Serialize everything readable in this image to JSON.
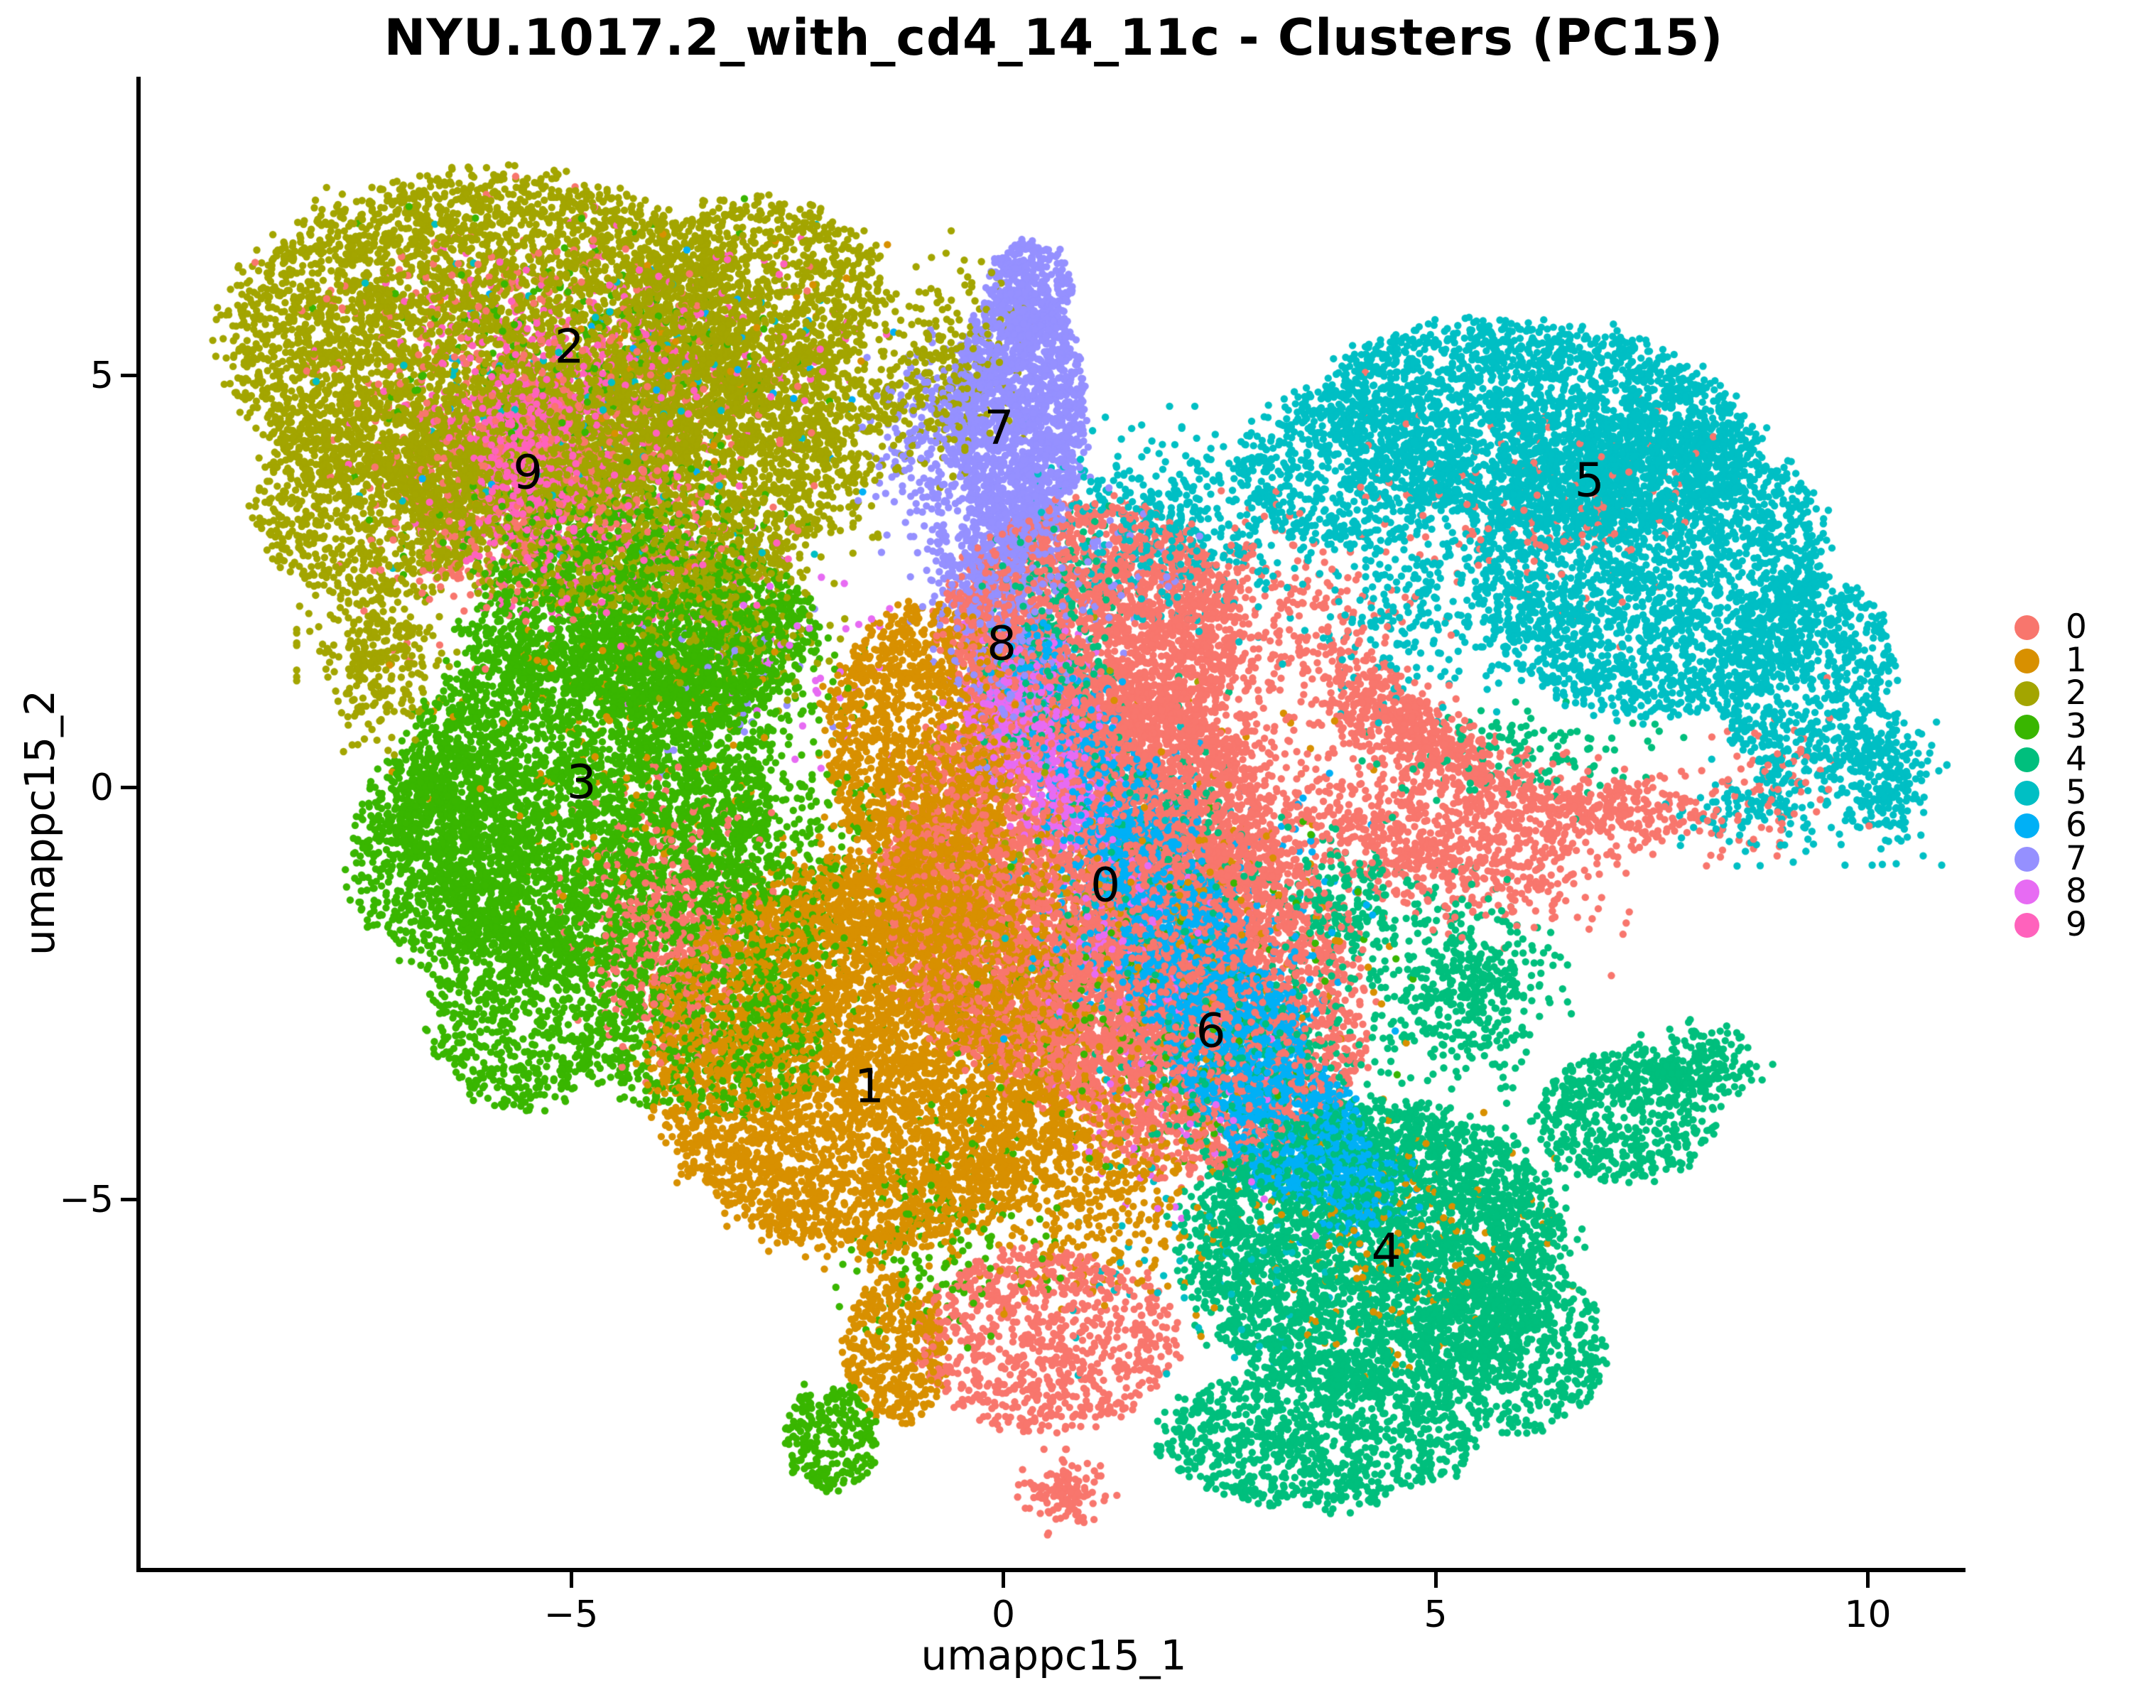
{
  "title": "NYU.1017.2_with_cd4_14_11c - Clusters (PC15)",
  "axes": {
    "x_label": "umappc15_1",
    "y_label": "umappc15_2",
    "x_ticks": [
      -5,
      0,
      5,
      10
    ],
    "x_tick_labels": [
      "−5",
      "0",
      "5",
      "10"
    ],
    "y_ticks": [
      -5,
      0,
      5
    ],
    "y_tick_labels": [
      "−5",
      "0",
      "5"
    ],
    "x_range": [
      -9.98,
      11.13
    ],
    "y_range": [
      -9.47,
      8.63
    ]
  },
  "legend": {
    "position": "right",
    "entries": [
      {
        "label": "0",
        "color": "#F8766D"
      },
      {
        "label": "1",
        "color": "#D89000"
      },
      {
        "label": "2",
        "color": "#A3A500"
      },
      {
        "label": "3",
        "color": "#39B600"
      },
      {
        "label": "4",
        "color": "#00BF7D"
      },
      {
        "label": "5",
        "color": "#00BFC4"
      },
      {
        "label": "6",
        "color": "#00B0F6"
      },
      {
        "label": "7",
        "color": "#9590FF"
      },
      {
        "label": "8",
        "color": "#E76BF3"
      },
      {
        "label": "9",
        "color": "#FF62BC"
      }
    ]
  },
  "chart_data": {
    "type": "scatter",
    "title": "NYU.1017.2_with_cd4_14_11c - Clusters (PC15)",
    "xlabel": "umappc15_1",
    "ylabel": "umappc15_2",
    "xlim": [
      -9.98,
      11.13
    ],
    "ylim": [
      -9.47,
      8.63
    ],
    "grid": false,
    "legend_position": "right",
    "point_radius_px": 5.2,
    "series": [
      {
        "name": "0",
        "color": "#F8766D",
        "label": "0",
        "label_pos": [
          1.18,
          -1.18
        ],
        "blobs": [
          [
            0.9,
            -1.2,
            2.3,
            2.5,
            4200,
            0,
            "u"
          ],
          [
            2.3,
            -2.6,
            1.9,
            2.1,
            2600,
            0,
            "u"
          ],
          [
            1.05,
            1.95,
            1.7,
            1.5,
            2300,
            0,
            "u"
          ],
          [
            2.1,
            0.3,
            1.4,
            1.5,
            800,
            0,
            "g"
          ],
          [
            4.9,
            -0.7,
            1.9,
            0.75,
            700,
            -15,
            "g"
          ],
          [
            6.8,
            -0.25,
            1.7,
            0.5,
            420,
            -5,
            "g"
          ],
          [
            4.4,
            0.9,
            1.1,
            0.5,
            400,
            -38,
            "g"
          ],
          [
            5.3,
            0.35,
            1.0,
            0.45,
            250,
            -38,
            "g"
          ],
          [
            0.5,
            -6.7,
            1.5,
            1.1,
            900,
            0,
            "u"
          ],
          [
            0.75,
            -8.55,
            0.45,
            0.4,
            130,
            0,
            "g"
          ],
          [
            -4.9,
            3.9,
            2.3,
            1.5,
            500,
            0,
            "g"
          ],
          [
            -5.6,
            5.6,
            2.6,
            1.4,
            220,
            0,
            "g"
          ],
          [
            -3.9,
            -1.7,
            0.95,
            1.5,
            650,
            0,
            "g"
          ],
          [
            3.3,
            2.1,
            1.5,
            1.3,
            250,
            0,
            "g"
          ],
          [
            6.3,
            3.4,
            2.0,
            1.3,
            160,
            0,
            "g"
          ],
          [
            9.0,
            0.3,
            0.8,
            0.8,
            60,
            0,
            "g"
          ],
          [
            -6.1,
            3.0,
            1.2,
            1.2,
            150,
            0,
            "g"
          ]
        ]
      },
      {
        "name": "1",
        "color": "#D89000",
        "label": "1",
        "label_pos": [
          -1.55,
          -3.62
        ],
        "blobs": [
          [
            -1.6,
            -3.3,
            2.45,
            2.35,
            5200,
            0,
            "u"
          ],
          [
            -0.9,
            0.6,
            1.15,
            1.6,
            1500,
            0,
            "u"
          ],
          [
            -0.6,
            -1.4,
            1.5,
            1.3,
            1150,
            0,
            "g"
          ],
          [
            -1.25,
            -6.8,
            0.6,
            0.9,
            420,
            0,
            "u"
          ],
          [
            0.9,
            -4.6,
            1.4,
            1.5,
            600,
            0,
            "g"
          ],
          [
            1.8,
            -1.8,
            2.2,
            2.2,
            300,
            0,
            "g"
          ],
          [
            4.6,
            -5.6,
            1.9,
            1.4,
            170,
            0,
            "g"
          ],
          [
            -4.5,
            0.3,
            2.0,
            2.0,
            150,
            0,
            "g"
          ],
          [
            -4.0,
            5.0,
            2.5,
            1.5,
            60,
            0,
            "g"
          ]
        ]
      },
      {
        "name": "2",
        "color": "#A3A500",
        "label": "2",
        "label_pos": [
          -5.02,
          5.35
        ],
        "blobs": [
          [
            -5.9,
            5.4,
            3.05,
            2.05,
            4600,
            0,
            "u"
          ],
          [
            -4.5,
            3.7,
            2.5,
            1.5,
            2300,
            0,
            "u"
          ],
          [
            -7.3,
            3.5,
            1.35,
            1.25,
            900,
            0,
            "u"
          ],
          [
            -2.9,
            6.0,
            1.5,
            1.15,
            1000,
            0,
            "u"
          ],
          [
            -2.2,
            4.6,
            1.35,
            1.2,
            700,
            0,
            "g"
          ],
          [
            -7.2,
            1.6,
            0.75,
            1.0,
            300,
            0,
            "g"
          ],
          [
            -3.3,
            2.2,
            1.2,
            1.0,
            350,
            0,
            "g"
          ],
          [
            -0.6,
            5.2,
            0.8,
            1.2,
            220,
            0,
            "g"
          ],
          [
            0.3,
            -0.5,
            1.5,
            2.0,
            70,
            0,
            "g"
          ]
        ]
      },
      {
        "name": "3",
        "color": "#39B600",
        "label": "3",
        "label_pos": [
          -4.88,
          0.07
        ],
        "blobs": [
          [
            -4.9,
            -0.2,
            2.15,
            2.1,
            3800,
            0,
            "u"
          ],
          [
            -4.2,
            2.0,
            2.0,
            1.05,
            1300,
            0,
            "u"
          ],
          [
            -6.5,
            -0.8,
            1.05,
            1.35,
            800,
            0,
            "u"
          ],
          [
            -5.6,
            -2.7,
            1.05,
            1.2,
            700,
            0,
            "u"
          ],
          [
            -3.4,
            -3.0,
            1.4,
            1.0,
            700,
            0,
            "u"
          ],
          [
            -2.6,
            -1.2,
            1.0,
            1.8,
            500,
            0,
            "g"
          ],
          [
            -3.3,
            1.4,
            1.3,
            1.0,
            600,
            0,
            "g"
          ],
          [
            -4.6,
            3.2,
            1.8,
            0.8,
            400,
            0,
            "g"
          ],
          [
            -2.0,
            -7.9,
            0.55,
            0.65,
            260,
            0,
            "u"
          ],
          [
            -0.7,
            -5.6,
            1.2,
            1.2,
            150,
            0,
            "g"
          ],
          [
            1.5,
            -2.5,
            2.5,
            2.0,
            200,
            0,
            "g"
          ],
          [
            -5.0,
            5.2,
            2.3,
            1.5,
            200,
            0,
            "g"
          ]
        ]
      },
      {
        "name": "4",
        "color": "#00BF7D",
        "label": "4",
        "label_pos": [
          4.43,
          -5.62
        ],
        "blobs": [
          [
            4.3,
            -5.6,
            2.2,
            1.75,
            3600,
            0,
            "u"
          ],
          [
            3.6,
            -7.9,
            1.8,
            0.85,
            1000,
            0,
            "u"
          ],
          [
            5.9,
            -6.8,
            1.1,
            1.0,
            600,
            0,
            "u"
          ],
          [
            7.2,
            -4.0,
            1.05,
            0.8,
            550,
            0,
            "u"
          ],
          [
            8.0,
            -3.4,
            0.7,
            0.45,
            220,
            0,
            "g"
          ],
          [
            5.4,
            -2.4,
            0.9,
            1.1,
            450,
            0,
            "g"
          ],
          [
            2.9,
            -3.3,
            1.5,
            1.5,
            450,
            0,
            "g"
          ],
          [
            1.7,
            -0.6,
            1.0,
            1.5,
            250,
            0,
            "g"
          ],
          [
            0.6,
            2.4,
            0.8,
            1.0,
            150,
            0,
            "g"
          ],
          [
            0.5,
            1.2,
            0.7,
            0.8,
            200,
            0,
            "g"
          ],
          [
            6.1,
            0.4,
            1.5,
            0.6,
            130,
            0,
            "g"
          ],
          [
            4.0,
            -1.4,
            0.8,
            0.8,
            200,
            0,
            "g"
          ]
        ]
      },
      {
        "name": "5",
        "color": "#00BFC4",
        "label": "5",
        "label_pos": [
          6.78,
          3.73
        ],
        "blobs": [
          [
            6.2,
            4.4,
            2.5,
            1.25,
            2600,
            -8,
            "u"
          ],
          [
            7.5,
            2.7,
            2.0,
            1.8,
            2600,
            0,
            "u"
          ],
          [
            9.3,
            1.3,
            1.05,
            1.3,
            800,
            0,
            "u"
          ],
          [
            10.2,
            0.1,
            0.55,
            0.8,
            250,
            0,
            "g"
          ],
          [
            4.0,
            3.9,
            1.3,
            1.0,
            700,
            0,
            "u"
          ],
          [
            2.0,
            3.2,
            1.35,
            1.1,
            450,
            0,
            "g"
          ],
          [
            4.9,
            2.2,
            1.5,
            1.1,
            300,
            0,
            "g"
          ],
          [
            8.7,
            -0.3,
            0.8,
            0.5,
            120,
            0,
            "g"
          ],
          [
            -4.7,
            4.5,
            2.5,
            1.8,
            120,
            0,
            "g"
          ],
          [
            1.2,
            -1.5,
            1.5,
            2.0,
            100,
            0,
            "g"
          ],
          [
            2.6,
            -6.0,
            2.0,
            1.5,
            60,
            0,
            "g"
          ]
        ]
      },
      {
        "name": "6",
        "color": "#00B0F6",
        "label": "6",
        "label_pos": [
          2.4,
          -2.95
        ],
        "blobs": [
          [
            0.85,
            0.5,
            0.5,
            0.8,
            350,
            0,
            "g"
          ],
          [
            1.45,
            -0.75,
            0.6,
            0.9,
            650,
            0,
            "g"
          ],
          [
            2.05,
            -2.0,
            0.7,
            0.95,
            900,
            0,
            "u"
          ],
          [
            2.7,
            -3.1,
            0.8,
            0.95,
            1000,
            0,
            "u"
          ],
          [
            3.4,
            -4.2,
            0.8,
            0.8,
            700,
            0,
            "u"
          ],
          [
            4.1,
            -4.9,
            0.55,
            0.5,
            250,
            0,
            "g"
          ],
          [
            2.2,
            -1.8,
            1.8,
            1.8,
            350,
            0,
            "g"
          ],
          [
            0.3,
            1.6,
            0.4,
            0.5,
            120,
            0,
            "g"
          ],
          [
            -4.0,
            4.8,
            2.8,
            1.8,
            40,
            0,
            "g"
          ]
        ]
      },
      {
        "name": "7",
        "color": "#9590FF",
        "label": "7",
        "label_pos": [
          -0.05,
          4.37
        ],
        "blobs": [
          [
            0.15,
            4.5,
            0.8,
            1.45,
            1700,
            0,
            "u"
          ],
          [
            0.3,
            6.0,
            0.5,
            0.65,
            400,
            0,
            "u"
          ],
          [
            -0.1,
            2.7,
            0.75,
            0.9,
            550,
            0,
            "g"
          ],
          [
            0.1,
            1.2,
            0.7,
            0.9,
            250,
            0,
            "g"
          ],
          [
            -0.9,
            4.2,
            0.6,
            1.2,
            200,
            0,
            "g"
          ],
          [
            1.1,
            2.6,
            0.9,
            0.9,
            80,
            0,
            "g"
          ],
          [
            -3.0,
            1.5,
            1.5,
            1.5,
            40,
            0,
            "g"
          ]
        ]
      },
      {
        "name": "8",
        "color": "#E76BF3",
        "label": "8",
        "label_pos": [
          -0.02,
          1.75
        ],
        "blobs": [
          [
            0.2,
            0.95,
            0.7,
            0.8,
            650,
            0,
            "g"
          ],
          [
            0.75,
            -0.1,
            0.6,
            0.65,
            350,
            0,
            "g"
          ],
          [
            1.4,
            -1.5,
            0.9,
            1.1,
            200,
            0,
            "g"
          ],
          [
            2.0,
            -3.6,
            1.4,
            1.6,
            90,
            0,
            "g"
          ],
          [
            -2.5,
            1.5,
            1.5,
            1.5,
            40,
            0,
            "g"
          ]
        ]
      },
      {
        "name": "9",
        "color": "#FF62BC",
        "label": "9",
        "label_pos": [
          -5.5,
          3.83
        ],
        "blobs": [
          [
            -5.6,
            4.0,
            0.55,
            0.95,
            520,
            0,
            "g"
          ],
          [
            -5.35,
            4.15,
            1.3,
            1.5,
            420,
            0,
            "g"
          ],
          [
            -5.1,
            5.1,
            2.2,
            1.5,
            260,
            0,
            "g"
          ],
          [
            -4.4,
            2.7,
            1.6,
            0.9,
            160,
            0,
            "g"
          ],
          [
            -2.8,
            5.6,
            1.5,
            1.0,
            60,
            0,
            "g"
          ]
        ]
      }
    ]
  }
}
